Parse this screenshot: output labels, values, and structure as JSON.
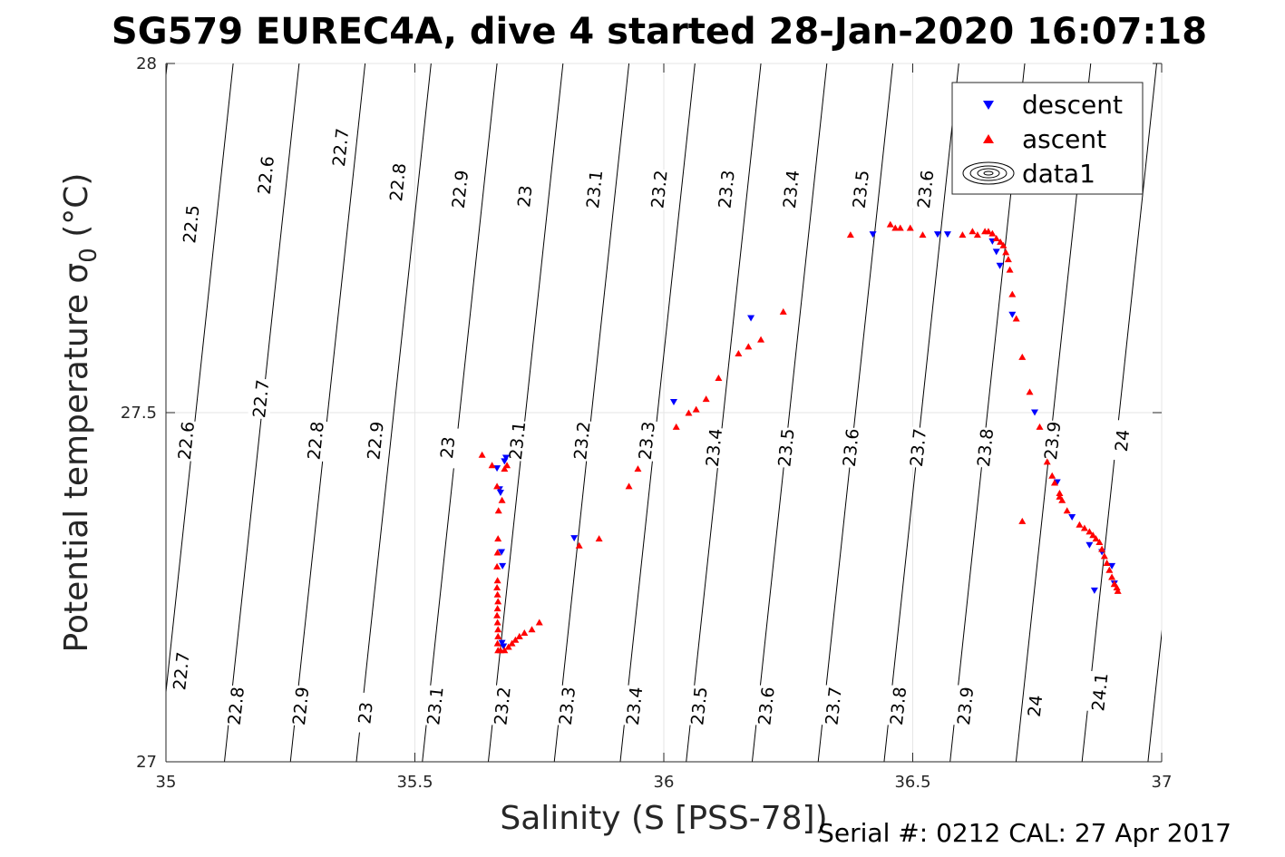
{
  "chart_data": {
    "type": "scatter",
    "title": "SG579 EUREC4A, dive 4 started 28-Jan-2020 16:07:18",
    "xlabel": "Salinity (S [PSS-78])",
    "ylabel": "Potential temperature σ",
    "ylabel_sub": "0",
    "ylabel_unit": " (°C)",
    "xlim": [
      35,
      37
    ],
    "ylim": [
      27,
      28
    ],
    "xticks": [
      35,
      35.5,
      36,
      36.5,
      37
    ],
    "yticks": [
      27,
      27.5,
      28
    ],
    "xtick_labels": [
      "35",
      "35.5",
      "36",
      "36.5",
      "37"
    ],
    "ytick_labels": [
      "27",
      "27.5",
      "28"
    ],
    "grid": true,
    "legend_position": "top-right",
    "legend": [
      {
        "label": "descent",
        "color": "#0000ff",
        "marker": "triangle-down"
      },
      {
        "label": "ascent",
        "color": "#ff0000",
        "marker": "triangle-up"
      },
      {
        "label": "data1",
        "color": "#000000",
        "marker": "contour"
      }
    ],
    "contour_labels": [
      {
        "text": "22.5",
        "x": 35.05,
        "y": 27.77
      },
      {
        "text": "22.6",
        "x": 35.2,
        "y": 27.84
      },
      {
        "text": "22.7",
        "x": 35.35,
        "y": 27.88
      },
      {
        "text": "22.8",
        "x": 35.465,
        "y": 27.83
      },
      {
        "text": "22.9",
        "x": 35.59,
        "y": 27.82
      },
      {
        "text": "23",
        "x": 35.72,
        "y": 27.81
      },
      {
        "text": "23.1",
        "x": 35.86,
        "y": 27.82
      },
      {
        "text": "23.2",
        "x": 35.99,
        "y": 27.82
      },
      {
        "text": "23.3",
        "x": 36.125,
        "y": 27.82
      },
      {
        "text": "23.4",
        "x": 36.255,
        "y": 27.82
      },
      {
        "text": "23.5",
        "x": 36.395,
        "y": 27.82
      },
      {
        "text": "23.6",
        "x": 36.525,
        "y": 27.82
      },
      {
        "text": "22.6",
        "x": 35.04,
        "y": 27.46
      },
      {
        "text": "22.7",
        "x": 35.19,
        "y": 27.52
      },
      {
        "text": "22.8",
        "x": 35.3,
        "y": 27.46
      },
      {
        "text": "22.9",
        "x": 35.42,
        "y": 27.46
      },
      {
        "text": "23",
        "x": 35.565,
        "y": 27.45
      },
      {
        "text": "23.1",
        "x": 35.705,
        "y": 27.46
      },
      {
        "text": "23.2",
        "x": 35.835,
        "y": 27.46
      },
      {
        "text": "23.3",
        "x": 35.965,
        "y": 27.46
      },
      {
        "text": "23.4",
        "x": 36.1,
        "y": 27.45
      },
      {
        "text": "23.5",
        "x": 36.245,
        "y": 27.45
      },
      {
        "text": "23.6",
        "x": 36.375,
        "y": 27.45
      },
      {
        "text": "23.7",
        "x": 36.51,
        "y": 27.45
      },
      {
        "text": "23.8",
        "x": 36.645,
        "y": 27.45
      },
      {
        "text": "23.9",
        "x": 36.78,
        "y": 27.46
      },
      {
        "text": "24",
        "x": 36.92,
        "y": 27.46
      },
      {
        "text": "22.7",
        "x": 35.03,
        "y": 27.13
      },
      {
        "text": "22.8",
        "x": 35.14,
        "y": 27.08
      },
      {
        "text": "22.9",
        "x": 35.27,
        "y": 27.08
      },
      {
        "text": "23",
        "x": 35.4,
        "y": 27.07
      },
      {
        "text": "23.1",
        "x": 35.54,
        "y": 27.08
      },
      {
        "text": "23.2",
        "x": 35.675,
        "y": 27.08
      },
      {
        "text": "23.3",
        "x": 35.805,
        "y": 27.08
      },
      {
        "text": "23.4",
        "x": 35.94,
        "y": 27.08
      },
      {
        "text": "23.5",
        "x": 36.07,
        "y": 27.08
      },
      {
        "text": "23.6",
        "x": 36.205,
        "y": 27.08
      },
      {
        "text": "23.7",
        "x": 36.34,
        "y": 27.08
      },
      {
        "text": "23.8",
        "x": 36.47,
        "y": 27.08
      },
      {
        "text": "23.9",
        "x": 36.605,
        "y": 27.08
      },
      {
        "text": "24",
        "x": 36.745,
        "y": 27.08
      },
      {
        "text": "24.1",
        "x": 36.875,
        "y": 27.1
      }
    ],
    "series": [
      {
        "name": "descent",
        "color": "#0000ff",
        "marker": "triangle-down",
        "points": [
          [
            35.665,
            27.42
          ],
          [
            35.67,
            27.39
          ],
          [
            35.672,
            27.385
          ],
          [
            35.674,
            27.3
          ],
          [
            35.676,
            27.28
          ],
          [
            35.68,
            27.43
          ],
          [
            35.683,
            27.435
          ],
          [
            35.675,
            27.17
          ],
          [
            35.678,
            27.165
          ],
          [
            35.82,
            27.32
          ],
          [
            36.02,
            27.515
          ],
          [
            36.175,
            27.635
          ],
          [
            36.42,
            27.755
          ],
          [
            36.55,
            27.755
          ],
          [
            36.57,
            27.755
          ],
          [
            36.66,
            27.745
          ],
          [
            36.668,
            27.73
          ],
          [
            36.675,
            27.71
          ],
          [
            36.7,
            27.64
          ],
          [
            36.745,
            27.5
          ],
          [
            36.79,
            27.4
          ],
          [
            36.82,
            27.35
          ],
          [
            36.855,
            27.31
          ],
          [
            36.88,
            27.3
          ],
          [
            36.9,
            27.28
          ],
          [
            36.905,
            27.255
          ],
          [
            36.865,
            27.245
          ]
        ]
      },
      {
        "name": "ascent",
        "color": "#ff0000",
        "marker": "triangle-up",
        "points": [
          [
            35.635,
            27.44
          ],
          [
            35.655,
            27.425
          ],
          [
            35.665,
            27.395
          ],
          [
            35.668,
            27.36
          ],
          [
            35.667,
            27.32
          ],
          [
            35.666,
            27.3
          ],
          [
            35.665,
            27.28
          ],
          [
            35.666,
            27.26
          ],
          [
            35.665,
            27.25
          ],
          [
            35.666,
            27.24
          ],
          [
            35.667,
            27.23
          ],
          [
            35.666,
            27.22
          ],
          [
            35.665,
            27.21
          ],
          [
            35.666,
            27.2
          ],
          [
            35.667,
            27.19
          ],
          [
            35.667,
            27.18
          ],
          [
            35.666,
            27.17
          ],
          [
            35.667,
            27.16
          ],
          [
            35.672,
            27.16
          ],
          [
            35.68,
            27.16
          ],
          [
            35.688,
            27.165
          ],
          [
            35.695,
            27.17
          ],
          [
            35.702,
            27.175
          ],
          [
            35.71,
            27.18
          ],
          [
            35.72,
            27.185
          ],
          [
            35.735,
            27.19
          ],
          [
            35.75,
            27.2
          ],
          [
            35.675,
            27.375
          ],
          [
            35.68,
            27.42
          ],
          [
            35.685,
            27.425
          ],
          [
            35.83,
            27.31
          ],
          [
            35.87,
            27.32
          ],
          [
            35.93,
            27.395
          ],
          [
            35.948,
            27.42
          ],
          [
            36.025,
            27.48
          ],
          [
            36.05,
            27.5
          ],
          [
            36.065,
            27.505
          ],
          [
            36.085,
            27.52
          ],
          [
            36.11,
            27.55
          ],
          [
            36.15,
            27.585
          ],
          [
            36.17,
            27.595
          ],
          [
            36.195,
            27.605
          ],
          [
            36.24,
            27.645
          ],
          [
            36.375,
            27.755
          ],
          [
            36.455,
            27.77
          ],
          [
            36.465,
            27.765
          ],
          [
            36.475,
            27.765
          ],
          [
            36.495,
            27.765
          ],
          [
            36.52,
            27.755
          ],
          [
            36.6,
            27.755
          ],
          [
            36.62,
            27.76
          ],
          [
            36.63,
            27.755
          ],
          [
            36.645,
            27.76
          ],
          [
            36.652,
            27.76
          ],
          [
            36.66,
            27.757
          ],
          [
            36.668,
            27.75
          ],
          [
            36.676,
            27.745
          ],
          [
            36.682,
            27.74
          ],
          [
            36.687,
            27.73
          ],
          [
            36.692,
            27.72
          ],
          [
            36.695,
            27.705
          ],
          [
            36.7,
            27.67
          ],
          [
            36.708,
            27.635
          ],
          [
            36.72,
            27.58
          ],
          [
            36.735,
            27.53
          ],
          [
            36.755,
            27.48
          ],
          [
            36.77,
            27.43
          ],
          [
            36.78,
            27.41
          ],
          [
            36.785,
            27.4
          ],
          [
            36.795,
            27.385
          ],
          [
            36.81,
            27.36
          ],
          [
            36.835,
            27.34
          ],
          [
            36.845,
            27.335
          ],
          [
            36.855,
            27.33
          ],
          [
            36.862,
            27.325
          ],
          [
            36.868,
            27.32
          ],
          [
            36.875,
            27.315
          ],
          [
            36.88,
            27.305
          ],
          [
            36.885,
            27.295
          ],
          [
            36.89,
            27.285
          ],
          [
            36.895,
            27.275
          ],
          [
            36.9,
            27.265
          ],
          [
            36.905,
            27.255
          ],
          [
            36.91,
            27.25
          ],
          [
            36.912,
            27.245
          ],
          [
            36.905,
            27.255
          ],
          [
            36.72,
            27.345
          ],
          [
            36.795,
            27.38
          ],
          [
            36.8,
            27.375
          ]
        ]
      }
    ]
  },
  "footer": {
    "serial_text": "Serial #: 0212  CAL: 27 Apr 2017"
  }
}
